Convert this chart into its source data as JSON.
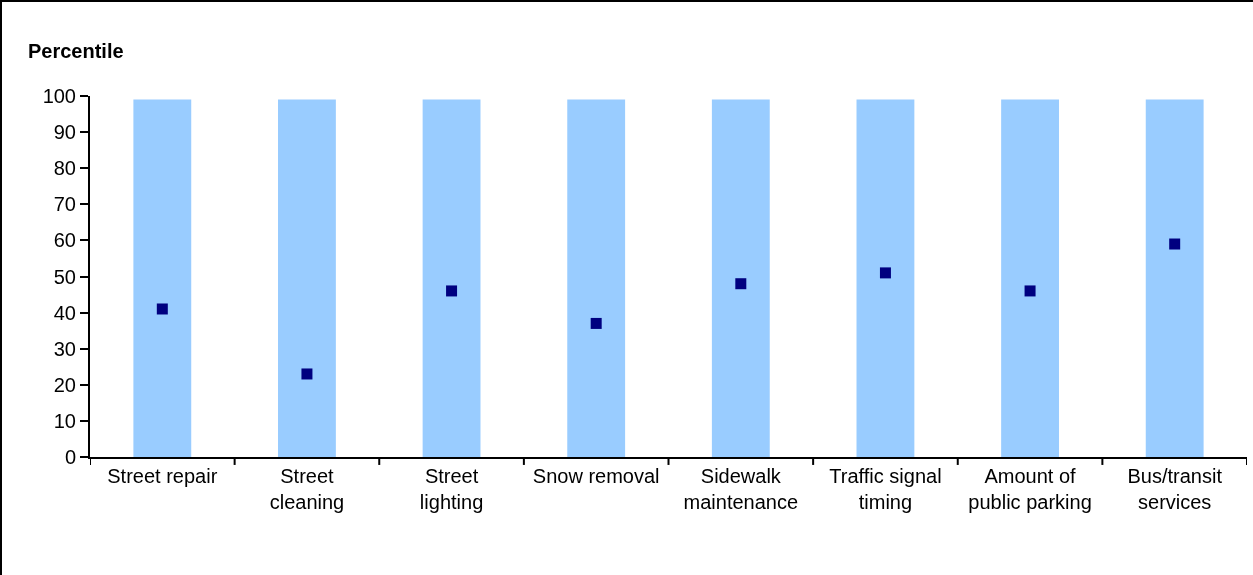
{
  "chart_data": {
    "type": "bar",
    "ylabel": "Percentile",
    "categories": [
      "Street repair",
      "Street cleaning",
      "Street lighting",
      "Snow removal",
      "Sidewalk maintenance",
      "Traffic signal timing",
      "Amount of public parking",
      "Bus/transit services"
    ],
    "series": [
      {
        "type": "bar",
        "color": "#99ccff",
        "values": [
          99,
          99,
          99,
          99,
          99,
          99,
          99,
          99
        ]
      },
      {
        "type": "scatter",
        "color": "#000080",
        "values": [
          41,
          23,
          46,
          37,
          48,
          51,
          46,
          59
        ]
      }
    ],
    "ylim": [
      0,
      100
    ],
    "yticks": [
      0,
      10,
      20,
      30,
      40,
      50,
      60,
      70,
      80,
      90,
      100
    ],
    "marker": "square",
    "grid": false,
    "legend": false
  }
}
